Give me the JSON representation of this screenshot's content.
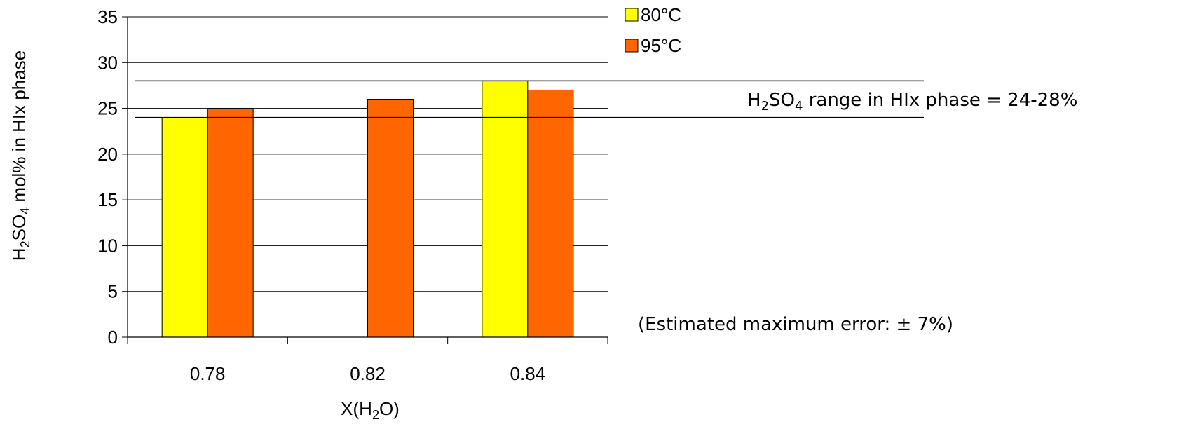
{
  "chart_data": {
    "type": "bar",
    "categories": [
      "0.78",
      "0.82",
      "0.84"
    ],
    "series": [
      {
        "name": "80°C",
        "color": "#FFFF00",
        "values": [
          24,
          null,
          28
        ]
      },
      {
        "name": "95°C",
        "color": "#FF6600",
        "values": [
          25,
          26,
          27
        ]
      }
    ],
    "ylim": [
      0,
      35
    ],
    "yticks": [
      0,
      5,
      10,
      15,
      20,
      25,
      30,
      35
    ],
    "xlabel": {
      "prefix": "X(H",
      "sub": "2",
      "suffix": "O)"
    },
    "ylabel": {
      "p1": "H",
      "s1": "2",
      "p2": "SO",
      "s2": "4",
      "p3": " mol% in HIx phase"
    },
    "grid": "horizontal",
    "legend_position": "top-right",
    "reference_lines": [
      24,
      28
    ],
    "annotations": {
      "range": {
        "p1": "H",
        "s1": "2",
        "p2": "SO",
        "s2": "4",
        "p3": " range in HIx phase = 24-28%"
      },
      "error": "(Estimated maximum error: ± 7%)"
    }
  }
}
